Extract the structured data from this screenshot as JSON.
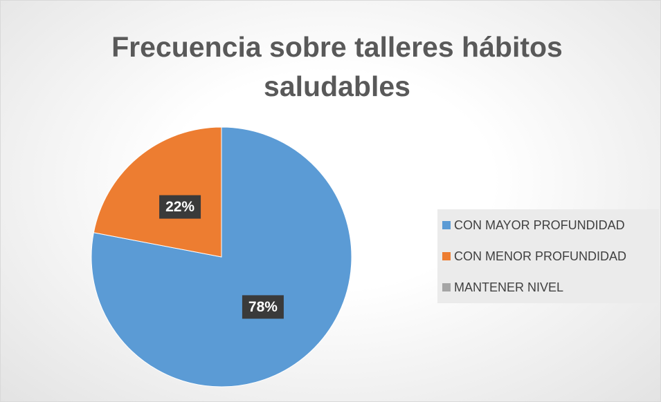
{
  "chart_data": {
    "type": "pie",
    "title": "Frecuencia sobre talleres hábitos saludables",
    "categories": [
      "CON MAYOR PROFUNDIDAD",
      "CON MENOR PROFUNDIDAD",
      "MANTENER NIVEL"
    ],
    "values": [
      78,
      22,
      0
    ],
    "value_labels": [
      "78%",
      "22%",
      null
    ],
    "colors": [
      "#5b9bd5",
      "#ed7d31",
      "#a5a5a5"
    ],
    "legend": "right"
  }
}
